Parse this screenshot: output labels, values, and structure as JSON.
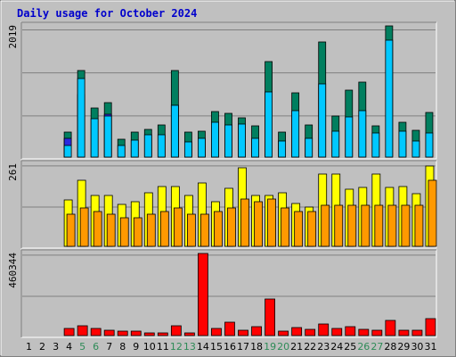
{
  "chart_data": {
    "type": "bar",
    "title": "Daily usage for October 2024",
    "categories": [
      "1",
      "2",
      "3",
      "4",
      "5",
      "6",
      "7",
      "8",
      "9",
      "10",
      "11",
      "12",
      "13",
      "14",
      "15",
      "16",
      "17",
      "18",
      "19",
      "20",
      "21",
      "22",
      "23",
      "24",
      "25",
      "26",
      "27",
      "28",
      "29",
      "30",
      "31"
    ],
    "weekend_days": [
      "5",
      "6",
      "12",
      "13",
      "19",
      "20",
      "26",
      "27"
    ],
    "panels": [
      {
        "axis_max_label": "2019",
        "ymax": 2019,
        "series": [
          {
            "color": "#007f5f",
            "values": [
              0,
              0,
              0,
              383,
              1330,
              749,
              838,
              274,
              383,
              420,
              493,
              1330,
              383,
              402,
              694,
              667,
              601,
              474,
              1476,
              383,
              986,
              493,
              1777,
              637,
              1028,
              1148,
              474,
              2019,
              538,
              410,
              683
            ]
          },
          {
            "color": "#2a2ae0",
            "values": [
              0,
              0,
              0,
              292,
              962,
              0,
              660,
              0,
              0,
              0,
              0,
              802,
              0,
              0,
              0,
              0,
              0,
              0,
              0,
              0,
              0,
              0,
              0,
              0,
              0,
              0,
              0,
              0,
              0,
              0,
              0
            ]
          },
          {
            "color": "#00c8ff",
            "values": [
              0,
              0,
              0,
              183,
              1212,
              593,
              638,
              183,
              256,
              337,
              347,
              793,
              229,
              292,
              529,
              493,
              511,
              283,
              1003,
              247,
              711,
              283,
              1121,
              401,
              620,
              711,
              374,
              1805,
              401,
              246,
              374
            ]
          }
        ]
      },
      {
        "axis_max_label": "261",
        "ymax": 261,
        "series": [
          {
            "color": "#ffff00",
            "values": [
              0,
              0,
              0,
              147,
              211,
              161,
              161,
              132,
              141,
              171,
              191,
              191,
              161,
              201,
              141,
              185,
              251,
              161,
              161,
              171,
              136,
              126,
              231,
              231,
              181,
              186,
              231,
              186,
              191,
              166,
              255
            ]
          },
          {
            "color": "#ff9900",
            "values": [
              0,
              0,
              0,
              101,
              121,
              111,
              101,
              91,
              91,
              101,
              111,
              121,
              101,
              101,
              111,
              121,
              151,
              141,
              151,
              121,
              111,
              111,
              131,
              131,
              131,
              131,
              131,
              131,
              131,
              131,
              211
            ]
          }
        ]
      },
      {
        "axis_max_label": "460344",
        "ymax": 460344,
        "series": [
          {
            "color": "#ff0000",
            "values": [
              0,
              0,
              0,
              40000,
              56000,
              40000,
              32000,
              24000,
              24000,
              16000,
              16000,
              56000,
              16000,
              460344,
              40000,
              76000,
              32000,
              52000,
              205000,
              24000,
              44000,
              36000,
              64000,
              40000,
              48000,
              36000,
              28000,
              84000,
              28000,
              28000,
              96000
            ]
          }
        ]
      }
    ]
  }
}
